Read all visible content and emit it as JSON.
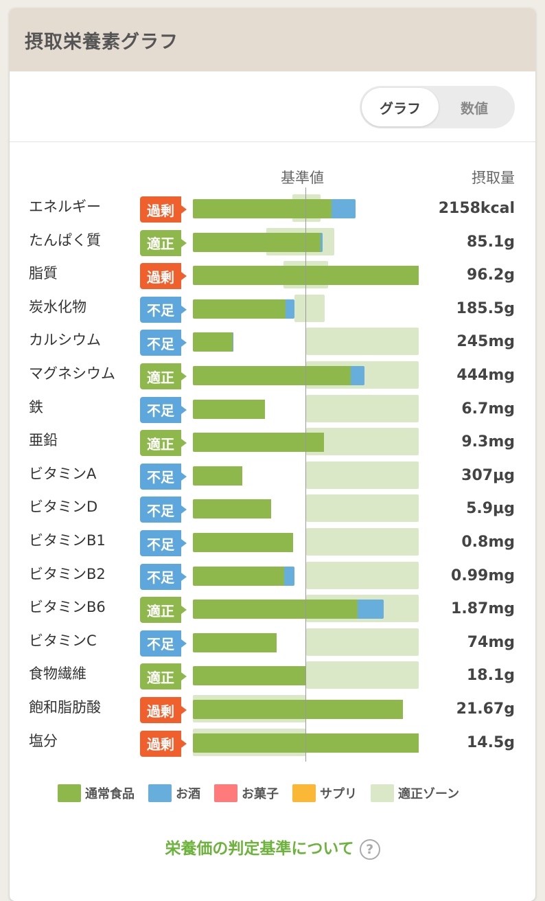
{
  "header": {
    "title": "摂取栄養素グラフ"
  },
  "toggle": {
    "graph_label": "グラフ",
    "numeric_label": "数値"
  },
  "columns": {
    "reference_label": "基準値",
    "intake_label": "摂取量"
  },
  "colors": {
    "over": "#f0602c",
    "ok": "#8eb84b",
    "under": "#5ea7dc",
    "normal_food": "#8eb84b",
    "alcohol": "#67aedd",
    "snacks": "#ff7b7b",
    "supplement": "#fbb836",
    "optimal_zone": "#dbe8c8"
  },
  "nutrients": [
    {
      "name": "エネルギー",
      "status": "過剰",
      "status_key": "over",
      "value": "2158kcal",
      "food_pct": 123,
      "alcohol_pct": 21,
      "zone": [
        88,
        113
      ]
    },
    {
      "name": "たんぱく質",
      "status": "適正",
      "status_key": "ok",
      "value": "85.1g",
      "food_pct": 113,
      "alcohol_pct": 2,
      "zone": [
        65,
        125
      ]
    },
    {
      "name": "脂質",
      "status": "過剰",
      "status_key": "over",
      "value": "96.2g",
      "food_pct": 200,
      "alcohol_pct": 0,
      "zone": [
        80,
        120
      ]
    },
    {
      "name": "炭水化物",
      "status": "不足",
      "status_key": "under",
      "value": "185.5g",
      "food_pct": 82,
      "alcohol_pct": 8,
      "zone": [
        90,
        117
      ]
    },
    {
      "name": "カルシウム",
      "status": "不足",
      "status_key": "under",
      "value": "245mg",
      "food_pct": 35,
      "alcohol_pct": 1,
      "zone": [
        100,
        200
      ]
    },
    {
      "name": "マグネシウム",
      "status": "適正",
      "status_key": "ok",
      "value": "444mg",
      "food_pct": 140,
      "alcohol_pct": 12,
      "zone": [
        100,
        200
      ]
    },
    {
      "name": "鉄",
      "status": "不足",
      "status_key": "under",
      "value": "6.7mg",
      "food_pct": 64,
      "alcohol_pct": 0,
      "zone": [
        100,
        200
      ]
    },
    {
      "name": "亜鉛",
      "status": "適正",
      "status_key": "ok",
      "value": "9.3mg",
      "food_pct": 116,
      "alcohol_pct": 0,
      "zone": [
        100,
        200
      ]
    },
    {
      "name": "ビタミンA",
      "status": "不足",
      "status_key": "under",
      "value": "307μg",
      "food_pct": 44,
      "alcohol_pct": 0,
      "zone": [
        100,
        200
      ]
    },
    {
      "name": "ビタミンD",
      "status": "不足",
      "status_key": "under",
      "value": "5.9μg",
      "food_pct": 69,
      "alcohol_pct": 0,
      "zone": [
        100,
        200
      ]
    },
    {
      "name": "ビタミンB1",
      "status": "不足",
      "status_key": "under",
      "value": "0.8mg",
      "food_pct": 89,
      "alcohol_pct": 0,
      "zone": [
        100,
        200
      ]
    },
    {
      "name": "ビタミンB2",
      "status": "不足",
      "status_key": "under",
      "value": "0.99mg",
      "food_pct": 81,
      "alcohol_pct": 9,
      "zone": [
        100,
        200
      ]
    },
    {
      "name": "ビタミンB6",
      "status": "適正",
      "status_key": "ok",
      "value": "1.87mg",
      "food_pct": 146,
      "alcohol_pct": 23,
      "zone": [
        100,
        200
      ]
    },
    {
      "name": "ビタミンC",
      "status": "不足",
      "status_key": "under",
      "value": "74mg",
      "food_pct": 74,
      "alcohol_pct": 0,
      "zone": [
        100,
        200
      ]
    },
    {
      "name": "食物繊維",
      "status": "適正",
      "status_key": "ok",
      "value": "18.1g",
      "food_pct": 100,
      "alcohol_pct": 0,
      "zone": [
        100,
        200
      ]
    },
    {
      "name": "飽和脂肪酸",
      "status": "過剰",
      "status_key": "over",
      "value": "21.67g",
      "food_pct": 186,
      "alcohol_pct": 0,
      "zone": [
        0,
        100
      ]
    },
    {
      "name": "塩分",
      "status": "過剰",
      "status_key": "over",
      "value": "14.5g",
      "food_pct": 200,
      "alcohol_pct": 0,
      "zone": [
        0,
        100
      ]
    }
  ],
  "legend": [
    {
      "label": "通常食品",
      "color": "#8eb84b"
    },
    {
      "label": "お酒",
      "color": "#67aedd"
    },
    {
      "label": "お菓子",
      "color": "#ff7b7b"
    },
    {
      "label": "サプリ",
      "color": "#fbb836"
    },
    {
      "label": "適正ゾーン",
      "color": "#dbe8c8"
    }
  ],
  "footer": {
    "link_label": "栄養価の判定基準について",
    "help_symbol": "?"
  }
}
